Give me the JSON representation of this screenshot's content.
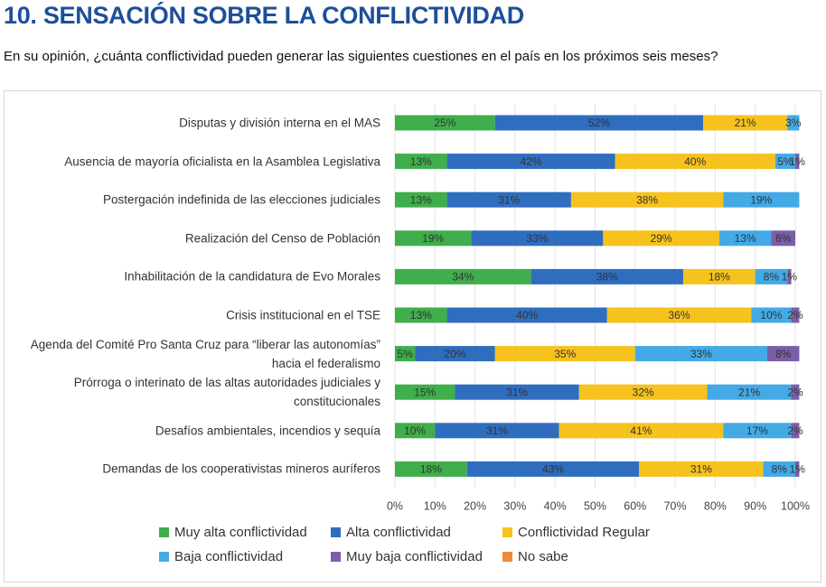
{
  "chart_data": {
    "type": "stacked_barh",
    "title": "10. SENSACIÓN SOBRE LA CONFLICTIVIDAD",
    "subtitle": "En su opinión, ¿cuánta conflictividad pueden generar las siguientes cuestiones en el país en los próximos seis meses?",
    "categories": [
      "Disputas y división interna en el MAS",
      "Ausencia de mayoría oficialista en la Asamblea Legislativa",
      "Postergación indefinida de las elecciones judiciales",
      "Realización del Censo de Población",
      "Inhabilitación de la candidatura de Evo Morales",
      "Crisis institucional en el TSE",
      "Agenda del Comité Pro Santa Cruz para “liberar las autonomías” hacia el federalismo",
      "Prórroga o interinato de las altas autoridades judiciales y constitucionales",
      "Desafíos ambientales, incendios y sequía",
      "Demandas de los cooperativistas mineros auríferos"
    ],
    "series": [
      {
        "name": "Muy alta conflictividad",
        "color": "#3fae4b",
        "values": [
          25,
          13,
          13,
          19,
          34,
          13,
          5,
          15,
          10,
          18
        ],
        "value_labels": [
          "25%",
          "13%",
          "13%",
          "19%",
          "34%",
          "13%",
          "5%",
          "15%",
          "10%",
          "18%"
        ]
      },
      {
        "name": "Alta conflictividad",
        "color": "#2f6dbf",
        "values": [
          52,
          42,
          31,
          33,
          38,
          40,
          20,
          31,
          31,
          43
        ],
        "value_labels": [
          "52%",
          "42%",
          "31%",
          "33%",
          "38%",
          "40%",
          "20%",
          "31%",
          "31%",
          "43%"
        ]
      },
      {
        "name": "Conflictividad Regular",
        "color": "#f6c21d",
        "values": [
          21,
          40,
          38,
          29,
          18,
          36,
          35,
          32,
          41,
          31
        ],
        "value_labels": [
          "21%",
          "40%",
          "38%",
          "29%",
          "18%",
          "36%",
          "35%",
          "32%",
          "41%",
          "31%"
        ]
      },
      {
        "name": "Baja conflictividad",
        "color": "#43aae6",
        "values": [
          3,
          5,
          19,
          13,
          8,
          10,
          33,
          21,
          17,
          8
        ],
        "value_labels": [
          "3%",
          "5%",
          "19%",
          "13%",
          "8%",
          "10%",
          "33%",
          "21%",
          "17%",
          "8%"
        ]
      },
      {
        "name": "Muy baja conflictividad",
        "color": "#7b5ea7",
        "values": [
          null,
          1,
          null,
          6,
          1,
          2,
          8,
          2,
          2,
          1
        ],
        "value_labels": [
          null,
          "1%",
          null,
          "6%",
          "1%",
          "2%",
          "8%",
          "2%",
          "2%",
          "1%"
        ]
      },
      {
        "name": "No sabe",
        "color": "#f08a3a",
        "values": [
          null,
          null,
          null,
          null,
          null,
          null,
          null,
          null,
          null,
          null
        ],
        "value_labels": [
          null,
          null,
          null,
          null,
          null,
          null,
          null,
          null,
          null,
          null
        ]
      }
    ],
    "xlim": [
      0,
      100
    ],
    "xticks": [
      {
        "value": 0,
        "label": "0%"
      },
      {
        "value": 10,
        "label": "10%"
      },
      {
        "value": 20,
        "label": "20%"
      },
      {
        "value": 30,
        "label": "30%"
      },
      {
        "value": 40,
        "label": "40%"
      },
      {
        "value": 50,
        "label": "50%"
      },
      {
        "value": 60,
        "label": "60%"
      },
      {
        "value": 70,
        "label": "70%"
      },
      {
        "value": 80,
        "label": "80%"
      },
      {
        "value": 90,
        "label": "90%"
      },
      {
        "value": 100,
        "label": "100%"
      }
    ],
    "grid": true
  }
}
